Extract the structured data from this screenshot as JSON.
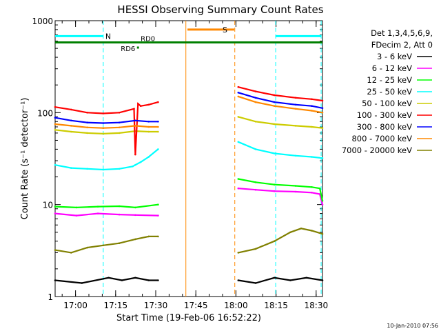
{
  "chart_data": {
    "type": "line",
    "title": "HESSI Observing Summary Count Rates",
    "xlabel": "Start Time (19-Feb-06 16:52:22)",
    "ylabel": "Count Rate (s⁻¹ detector⁻¹)",
    "y_scale": "log",
    "ylim": [
      1,
      1000
    ],
    "y_tick_labels": [
      "1",
      "10",
      "100",
      "1000"
    ],
    "x_unit": "minutes since 16:52:22",
    "xlim": [
      0,
      100
    ],
    "x_ticks": [
      {
        "x": 7.63,
        "label": "17:00"
      },
      {
        "x": 22.63,
        "label": "17:15"
      },
      {
        "x": 37.63,
        "label": "17:30"
      },
      {
        "x": 52.63,
        "label": "17:45"
      },
      {
        "x": 67.63,
        "label": "18:00"
      },
      {
        "x": 82.63,
        "label": "18:15"
      },
      {
        "x": 97.63,
        "label": "18:30"
      }
    ],
    "legend": {
      "placement": "top-right",
      "header": [
        "Det 1,3,4,5,6,9,",
        "FDecim 2, Att 0"
      ]
    },
    "series": [
      {
        "name": "3 - 6 keV",
        "color": "#000000",
        "segments": [
          {
            "x": [
              0,
              10,
              20,
              25,
              30,
              35,
              38.5
            ],
            "y": [
              1.5,
              1.4,
              1.6,
              1.5,
              1.6,
              1.5,
              1.5
            ]
          },
          {
            "x": [
              68.5,
              75,
              82,
              88,
              94,
              100
            ],
            "y": [
              1.5,
              1.4,
              1.6,
              1.5,
              1.6,
              1.5
            ]
          }
        ]
      },
      {
        "name": "6 - 12 keV",
        "color": "#ff00ff",
        "segments": [
          {
            "x": [
              0,
              8,
              16,
              24,
              30,
              38.5
            ],
            "y": [
              8,
              7.6,
              8,
              7.8,
              7.7,
              7.6
            ]
          },
          {
            "x": [
              68.5,
              75,
              82,
              90,
              96,
              99,
              100
            ],
            "y": [
              15,
              14.5,
              14,
              13.8,
              13.5,
              13,
              10
            ]
          }
        ]
      },
      {
        "name": "12 - 25 keV",
        "color": "#00ff00",
        "segments": [
          {
            "x": [
              0,
              8,
              16,
              24,
              30,
              38.5
            ],
            "y": [
              9.5,
              9.3,
              9.5,
              9.6,
              9.3,
              10
            ]
          },
          {
            "x": [
              68.5,
              75,
              82,
              90,
              96,
              99,
              100
            ],
            "y": [
              19,
              17.5,
              16.5,
              16,
              15.5,
              15,
              11
            ]
          }
        ]
      },
      {
        "name": "25 - 50 keV",
        "color": "#00ffff",
        "segments": [
          {
            "x": [
              0,
              6,
              12,
              18,
              24,
              29,
              30,
              32,
              35,
              38.5
            ],
            "y": [
              27,
              25,
              24.5,
              24,
              24.5,
              26,
              27,
              29,
              33,
              40
            ]
          },
          {
            "x": [
              68.5,
              75,
              82,
              90,
              96,
              100
            ],
            "y": [
              48,
              40,
              36,
              34,
              33,
              32
            ]
          }
        ]
      },
      {
        "name": "50 - 100 keV",
        "color": "#cccc00",
        "segments": [
          {
            "x": [
              0,
              6,
              12,
              18,
              24,
              30,
              35,
              38.5
            ],
            "y": [
              65,
              62,
              60,
              59,
              60,
              63,
              62,
              62
            ]
          },
          {
            "x": [
              68.5,
              75,
              82,
              90,
              96,
              100
            ],
            "y": [
              90,
              80,
              75,
              72,
              70,
              68
            ]
          }
        ]
      },
      {
        "name": "100 - 300 keV",
        "color": "#ff0000",
        "segments": [
          {
            "x": [
              0,
              6,
              12,
              18,
              24,
              29.5,
              30,
              31,
              32,
              35,
              38.5
            ],
            "y": [
              115,
              108,
              100,
              98,
              100,
              110,
              35,
              125,
              118,
              122,
              130
            ]
          },
          {
            "x": [
              68.5,
              75,
              82,
              90,
              96,
              100
            ],
            "y": [
              190,
              170,
              155,
              145,
              140,
              135
            ]
          }
        ]
      },
      {
        "name": "300 - 800 keV",
        "color": "#0000ff",
        "segments": [
          {
            "x": [
              0,
              6,
              12,
              18,
              24,
              30,
              35,
              38.5
            ],
            "y": [
              88,
              82,
              78,
              77,
              78,
              82,
              80,
              80
            ]
          },
          {
            "x": [
              68.5,
              75,
              82,
              90,
              96,
              100
            ],
            "y": [
              165,
              145,
              130,
              122,
              118,
              112
            ]
          }
        ]
      },
      {
        "name": "800 - 7000 keV",
        "color": "#ff8800",
        "segments": [
          {
            "x": [
              0,
              6,
              12,
              18,
              24,
              30,
              35,
              38.5
            ],
            "y": [
              75,
              72,
              69,
              68,
              69,
              72,
              70,
              70
            ]
          },
          {
            "x": [
              68.5,
              75,
              82,
              90,
              96,
              100
            ],
            "y": [
              150,
              130,
              118,
              110,
              105,
              100
            ]
          }
        ]
      },
      {
        "name": "7000 - 20000 keV",
        "color": "#808000",
        "segments": [
          {
            "x": [
              0,
              6,
              12,
              18,
              24,
              30,
              35,
              38.5
            ],
            "y": [
              3.2,
              3.0,
              3.4,
              3.6,
              3.8,
              4.2,
              4.5,
              4.5
            ]
          },
          {
            "x": [
              68.5,
              75,
              82,
              88,
              92,
              96,
              100
            ],
            "y": [
              3.0,
              3.3,
              4.0,
              5.0,
              5.5,
              5.2,
              4.8
            ]
          }
        ]
      }
    ],
    "annotations": [
      {
        "label": "N",
        "color": "#00ffff",
        "kind": "interval",
        "x0": 0,
        "x1": 18,
        "y": 680,
        "bounds": [
          18,
          82.5,
          99.5
        ]
      },
      {
        "label": "S",
        "color": "#ff8800",
        "kind": "interval",
        "x0": 49.5,
        "x1": 67,
        "y": 800,
        "bounds": [
          48.9,
          67.2
        ]
      },
      {
        "label": "RD0",
        "color": "#008000",
        "kind": "line",
        "x0": 0,
        "x1": 100,
        "y": 580
      },
      {
        "label": "RD6",
        "color": "#008000",
        "kind": "point",
        "x": 31,
        "y": 510
      }
    ],
    "footer_date": "10-Jan-2010 07:56"
  }
}
